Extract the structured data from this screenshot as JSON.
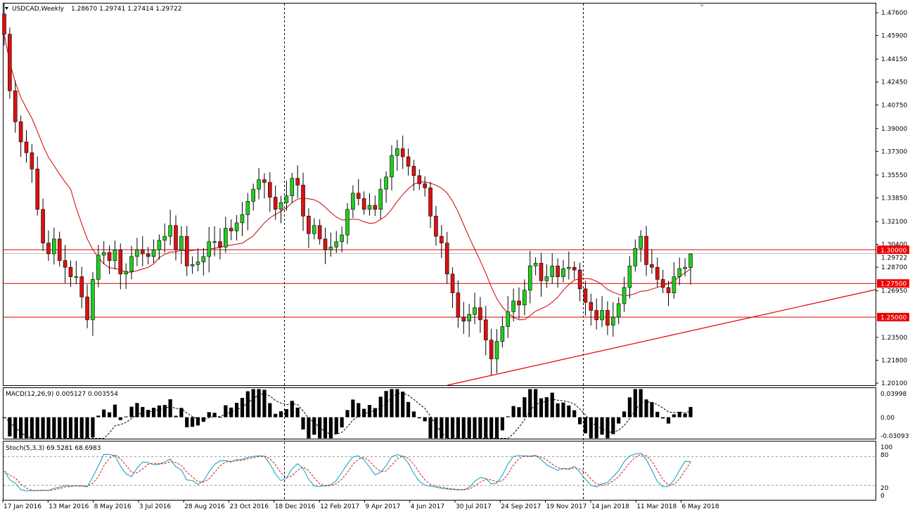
{
  "header": {
    "symbol": "USDCAD,Weekly",
    "ohlc": "1.28670 1.29741 1.27414 1.29722"
  },
  "colors": {
    "bull": "#22cc22",
    "bear": "#dd1111",
    "ma": "#cc0000",
    "hline": "#dd0000",
    "grid_dash": "#000000",
    "stoch_main": "#1aa7c7",
    "stoch_signal": "#dd1111",
    "tag_bg": "#ee0000"
  },
  "macd": {
    "title": "MACD(12,26,9) 0.005127 0.003554",
    "ticks": [
      "0.03998",
      "0.00",
      "-0.030937"
    ]
  },
  "stoch": {
    "title": "Stoch(5,3,3) 69.5281 68.6983",
    "ticks": [
      "100",
      "80",
      "20",
      "0"
    ]
  },
  "chart_data": {
    "type": "candlestick",
    "symbol": "USDCAD",
    "timeframe": "Weekly",
    "last_ohlc": {
      "open": 1.2867,
      "high": 1.29741,
      "low": 1.27414,
      "close": 1.29722
    },
    "price_axis": {
      "ticks": [
        "1.47600",
        "1.45900",
        "1.44150",
        "1.42450",
        "1.40750",
        "1.39000",
        "1.37300",
        "1.35550",
        "1.33850",
        "1.32100",
        "1.30400",
        "1.28700",
        "1.26950",
        "1.23500",
        "1.21800",
        "1.20100"
      ],
      "range": [
        1.201,
        1.479
      ]
    },
    "x_labels": [
      "17 Jan 2016",
      "13 Mar 2016",
      "8 May 2016",
      "3 Jul 2016",
      "28 Aug 2016",
      "23 Oct 2016",
      "18 Dec 2016",
      "12 Feb 2017",
      "9 Apr 2017",
      "4 Jun 2017",
      "30 Jul 2017",
      "24 Sep 2017",
      "19 Nov 2017",
      "14 Jan 2018",
      "11 Mar 2018",
      "6 May 2018"
    ],
    "levels": [
      {
        "label": "1.30000",
        "value": 1.3
      },
      {
        "label": "1.27500",
        "value": 1.275
      },
      {
        "label": "1.25000",
        "value": 1.25
      }
    ],
    "current_price_label": "1.29722",
    "closes": [
      1.46,
      1.418,
      1.395,
      1.38,
      1.372,
      1.36,
      1.33,
      1.305,
      1.297,
      1.308,
      1.292,
      1.287,
      1.28,
      1.28,
      1.265,
      1.248,
      1.278,
      1.296,
      1.298,
      1.292,
      1.3,
      1.282,
      1.284,
      1.295,
      1.3,
      1.297,
      1.295,
      1.3,
      1.307,
      1.31,
      1.318,
      1.3,
      1.31,
      1.288,
      1.289,
      1.291,
      1.295,
      1.306,
      1.306,
      1.302,
      1.316,
      1.314,
      1.32,
      1.326,
      1.336,
      1.345,
      1.352,
      1.35,
      1.339,
      1.33,
      1.335,
      1.34,
      1.353,
      1.348,
      1.325,
      1.312,
      1.318,
      1.308,
      1.3,
      1.302,
      1.306,
      1.311,
      1.33,
      1.342,
      1.338,
      1.33,
      1.333,
      1.33,
      1.345,
      1.354,
      1.37,
      1.375,
      1.369,
      1.362,
      1.355,
      1.349,
      1.346,
      1.325,
      1.31,
      1.305,
      1.282,
      1.268,
      1.25,
      1.247,
      1.252,
      1.257,
      1.248,
      1.233,
      1.219,
      1.232,
      1.243,
      1.254,
      1.262,
      1.259,
      1.27,
      1.288,
      1.29,
      1.277,
      1.28,
      1.288,
      1.28,
      1.286,
      1.287,
      1.285,
      1.271,
      1.261,
      1.255,
      1.248,
      1.255,
      1.244,
      1.25,
      1.26,
      1.272,
      1.288,
      1.301,
      1.31,
      1.289,
      1.287,
      1.278,
      1.272,
      1.268,
      1.28,
      1.286,
      1.287,
      1.297
    ],
    "ma_label": "Moving Average",
    "macd": {
      "title": "MACD(12,26,9) 0.005127 0.003554",
      "main": 0.005127,
      "signal": 0.003554,
      "ylim": [
        -0.030937,
        0.03998
      ]
    },
    "stochastic": {
      "title": "Stoch(5,3,3) 69.5281 68.6983",
      "k": 69.5281,
      "d": 68.6983,
      "levels": [
        20,
        80
      ],
      "ylim": [
        0,
        100
      ]
    }
  }
}
